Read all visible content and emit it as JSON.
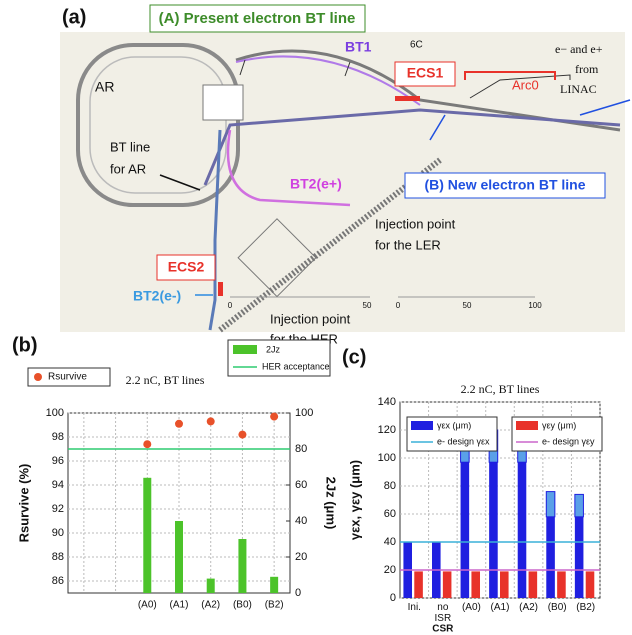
{
  "panel_a": {
    "label": "(a)",
    "present_line": "(A) Present electron BT line",
    "new_line": "(B) New electron BT line",
    "bt1": "BT1",
    "sixc": "6C",
    "ecs1": "ECS1",
    "arc0": "Arc0",
    "linac": [
      "e− and e+",
      "from",
      "LINAC"
    ],
    "ar": "AR",
    "bt_ar": [
      "BT line",
      "for AR"
    ],
    "bt2p": "BT2(e+)",
    "inj_ler": [
      "Injection point",
      "for the LER"
    ],
    "ecs2": "ECS2",
    "bt2m": "BT2(e-)",
    "inj_her": [
      "Injection point",
      "for the HER"
    ],
    "scale_left": [
      "0",
      "50"
    ],
    "scale_right": [
      "0",
      "50",
      "100"
    ]
  },
  "chart_data": [
    {
      "type": "combo",
      "label": "(b)",
      "title": "2.2 nC, BT lines",
      "categories": [
        null,
        null,
        "(A0)",
        "(A1)",
        "(A2)",
        "(B0)",
        "(B2)"
      ],
      "series": [
        {
          "name": "Rsurvive",
          "kind": "scatter",
          "color": "#e8512a",
          "values": [
            null,
            null,
            97.4,
            99.1,
            99.3,
            98.2,
            99.7
          ]
        },
        {
          "name": "2Jz",
          "kind": "bar",
          "axis": "y2",
          "color": "#4cc32a",
          "values": [
            null,
            null,
            64,
            40,
            8,
            30,
            9
          ]
        }
      ],
      "reference_lines": [
        {
          "name": "HER acceptance",
          "axis": "y2",
          "color": "#2ecc71",
          "value": 80
        }
      ],
      "ylabel": "Rsurvive (%)",
      "y2label": "2Jz (μm)",
      "ylim": [
        85,
        100
      ],
      "yticks": [
        86,
        88,
        90,
        92,
        94,
        96,
        98,
        100
      ],
      "y2lim": [
        0,
        100
      ],
      "y2ticks": [
        0,
        20,
        40,
        60,
        80,
        100
      ],
      "grid": true
    },
    {
      "type": "grouped_bar",
      "label": "(c)",
      "title": "2.2 nC, BT lines",
      "categories": [
        "Ini.",
        "no\nISR",
        "(A0)",
        "(A1)",
        "(A2)",
        "(B0)",
        "(B2)"
      ],
      "note": "CSR",
      "series": [
        {
          "name": "γεx (μm)",
          "color": "#1f1fe0",
          "upper_color": "#5aa0e8",
          "values": [
            40,
            40,
            97,
            97,
            97,
            58,
            58
          ],
          "upper": [
            null,
            null,
            118,
            120,
            120,
            76,
            74
          ]
        },
        {
          "name": "γεy (μm)",
          "color": "#e8322a",
          "values": [
            19,
            19,
            19,
            19,
            19,
            19,
            19
          ]
        }
      ],
      "reference_lines": [
        {
          "name": "e- design γεx",
          "color": "#3ab0d8",
          "value": 40
        },
        {
          "name": "e- design γεy",
          "color": "#cc66cc",
          "value": 20
        }
      ],
      "ylabel": "γεx, γεy (μm)",
      "ylim": [
        0,
        140
      ],
      "yticks": [
        0,
        20,
        40,
        60,
        80,
        100,
        120,
        140
      ],
      "grid": true
    }
  ]
}
